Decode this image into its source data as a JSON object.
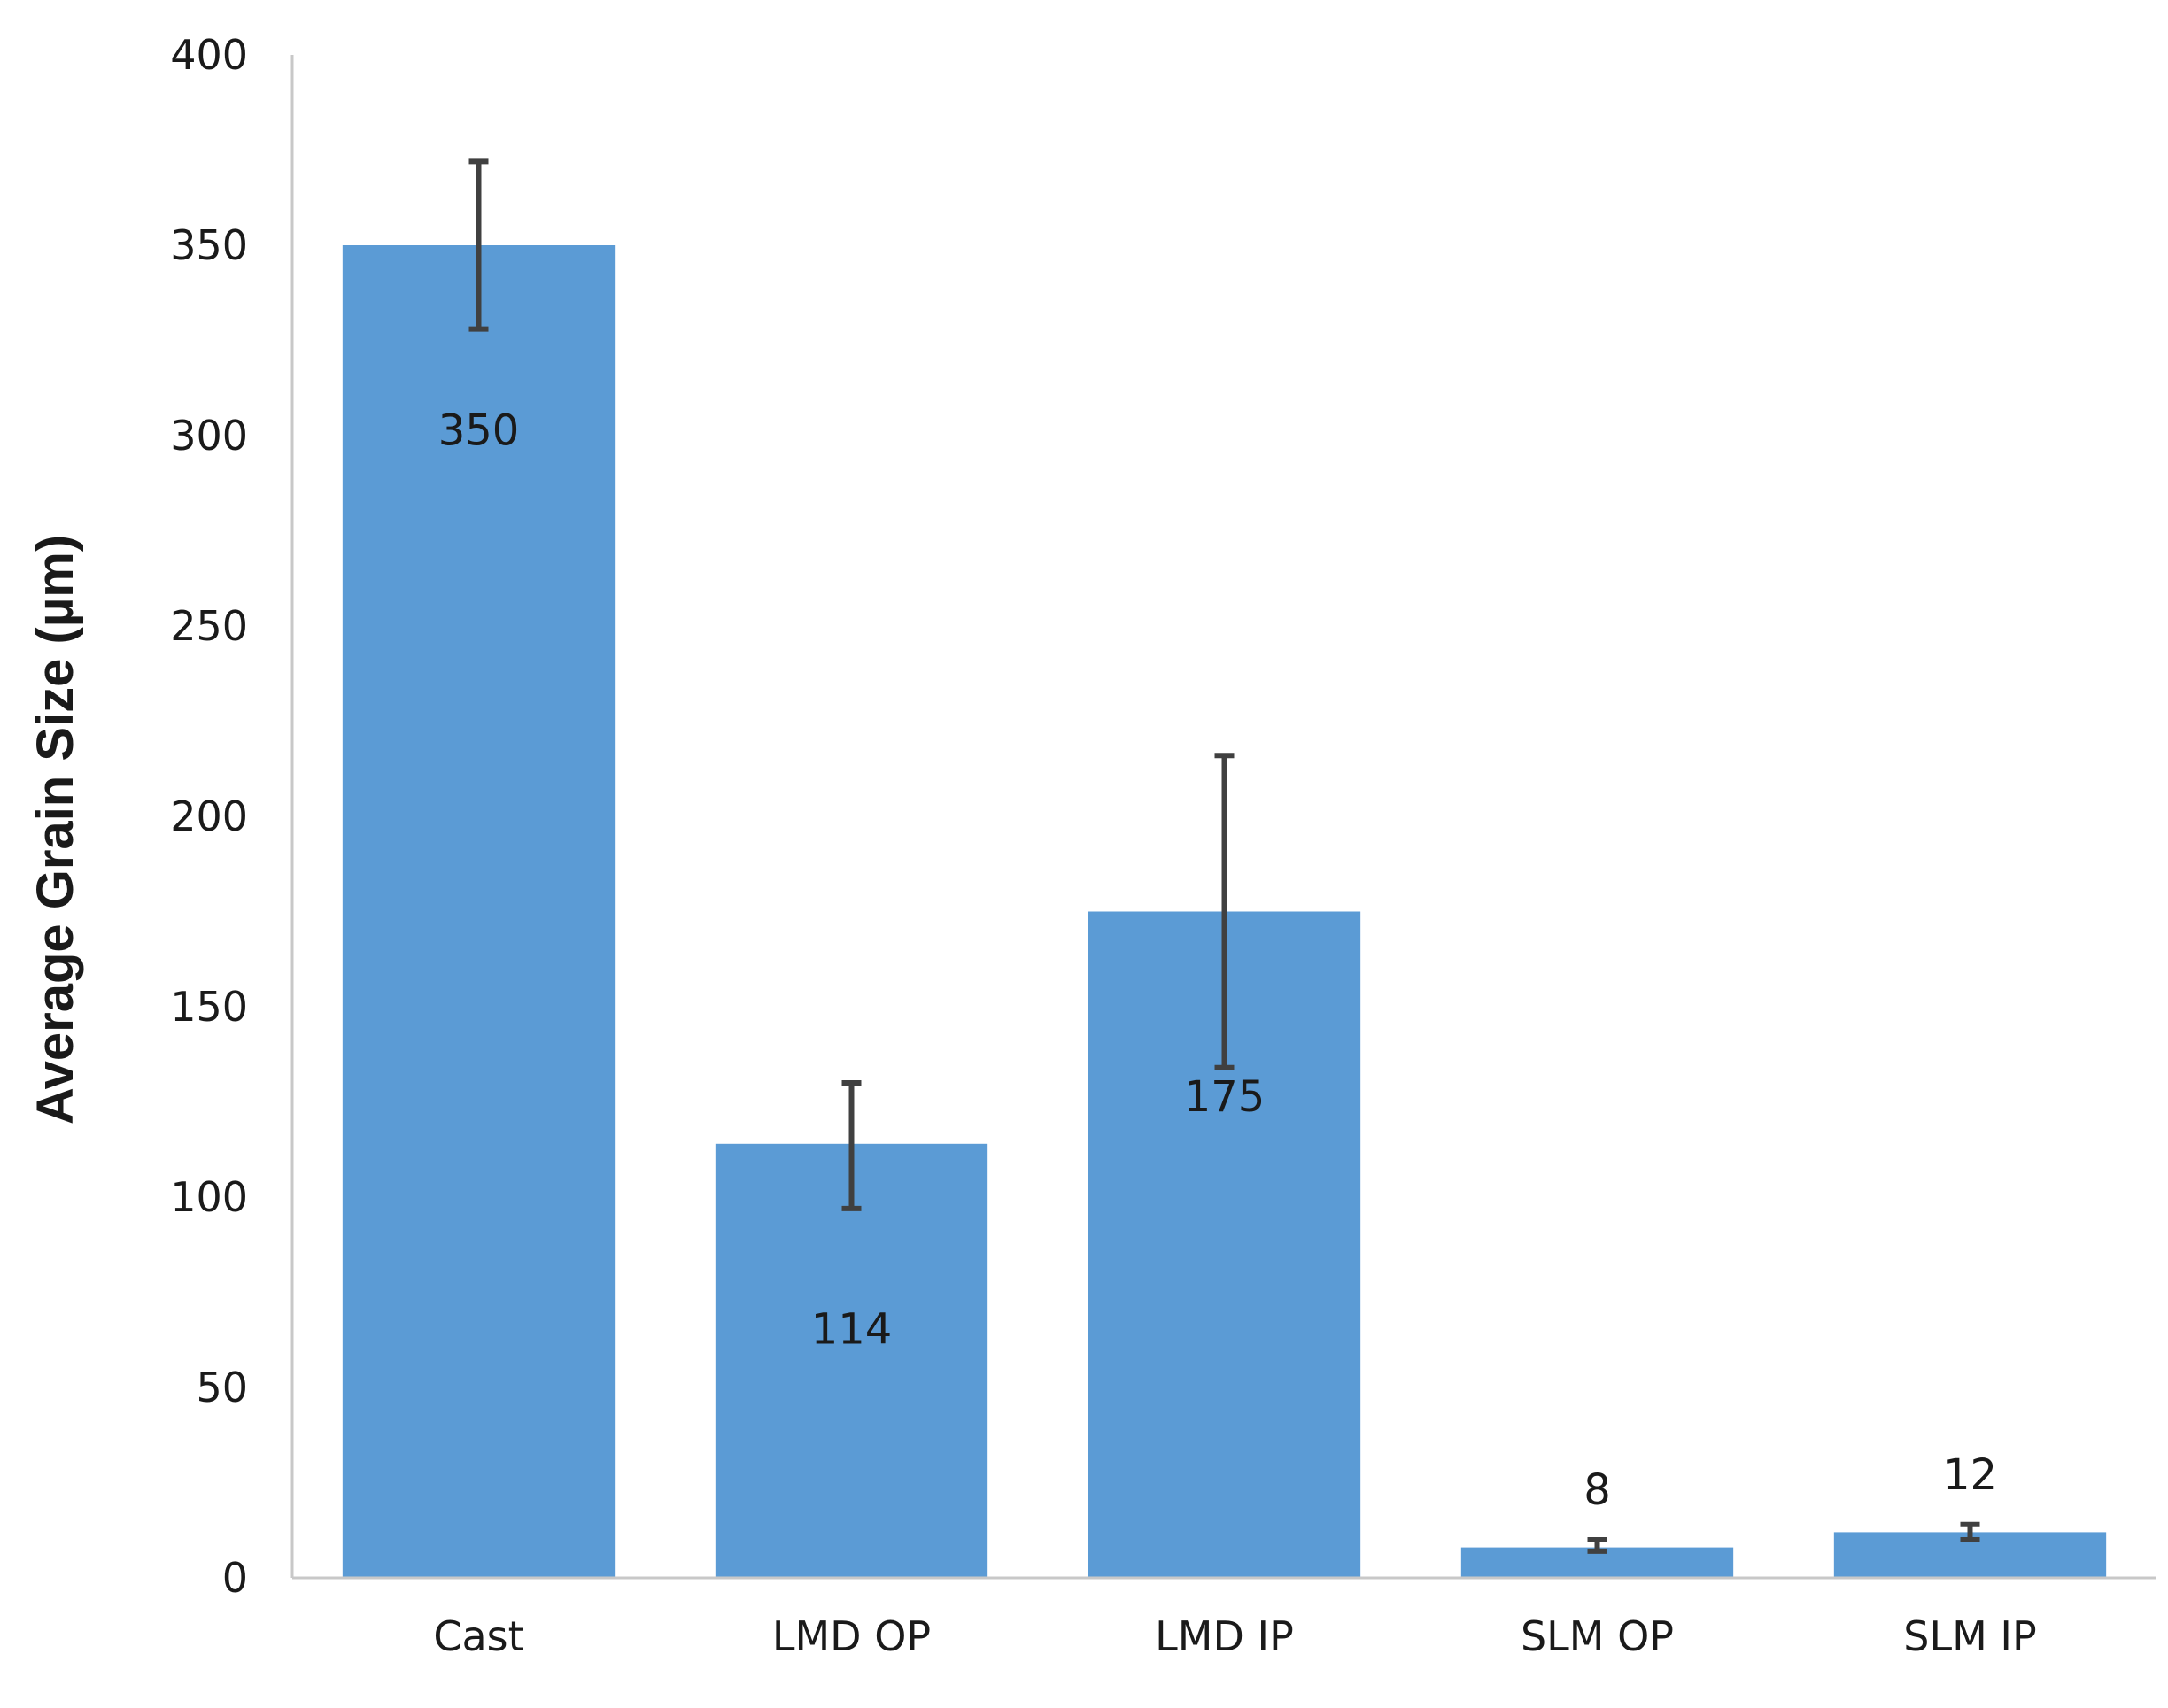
{
  "chart_data": {
    "type": "bar",
    "title": "",
    "xlabel": "",
    "ylabel": "Average Grain Size (µm)",
    "categories": [
      "Cast",
      "LMD OP",
      "LMD IP",
      "SLM OP",
      "SLM IP"
    ],
    "values": [
      350,
      114,
      175,
      8,
      12
    ],
    "data_labels": [
      "350",
      "114",
      "175",
      "8",
      "12"
    ],
    "error_bars": [
      {
        "low": 328,
        "high": 372
      },
      {
        "low": 97,
        "high": 130
      },
      {
        "low": 134,
        "high": 216
      },
      {
        "low": 7,
        "high": 10
      },
      {
        "low": 10,
        "high": 14
      }
    ],
    "ylim": [
      0,
      400
    ],
    "yticks": [
      0,
      50,
      100,
      150,
      200,
      250,
      300,
      350,
      400
    ],
    "grid": false,
    "legend": "none",
    "colors": {
      "bar": "#5b9bd5",
      "error_bar": "#404040",
      "axis": "#c8c8c8"
    }
  }
}
